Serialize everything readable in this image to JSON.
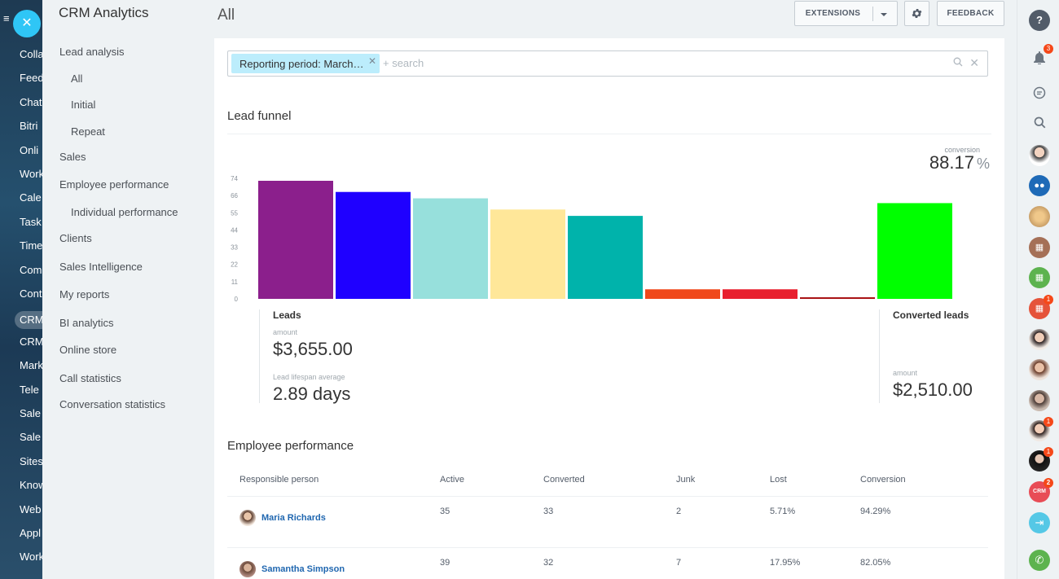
{
  "left_nav": {
    "items": [
      "Colla",
      "Feed",
      "Chat",
      "Bitri",
      "Onli",
      "Work",
      "Cale",
      "Task",
      "Time",
      "Com",
      "Cont",
      "CRM",
      "CRM",
      "Mark",
      "Tele",
      "Sale",
      "Sale",
      "Sites",
      "Know",
      "Web",
      "Appl",
      "Work"
    ],
    "active_index": 11
  },
  "side_menu": {
    "title": "CRM Analytics",
    "items": [
      "Lead analysis",
      "All",
      "Initial",
      "Repeat",
      "Sales",
      "Employee performance",
      "Individual performance",
      "Clients",
      "Sales Intelligence",
      "My reports",
      "BI analytics",
      "Online store",
      "Call statistics",
      "Conversation statistics"
    ]
  },
  "header": {
    "title": "All",
    "extensions_label": "EXTENSIONS",
    "feedback_label": "FEEDBACK"
  },
  "filter": {
    "chip_label": "Reporting period: March…",
    "search_placeholder": "+ search"
  },
  "lead_funnel": {
    "title": "Lead funnel",
    "conversion_label": "conversion",
    "conversion_value": "88.17",
    "conversion_unit": "%",
    "left_block": {
      "title": "Leads",
      "amount_label": "amount",
      "amount_value": "$3,655.00",
      "lifespan_label": "Lead lifespan average",
      "lifespan_value": "2.89 days"
    },
    "right_block": {
      "title": "Converted leads",
      "amount_label": "amount",
      "amount_value": "$2,510.00"
    }
  },
  "chart_data": {
    "type": "bar",
    "y_ticks": [
      "74",
      "66",
      "55",
      "44",
      "33",
      "22",
      "11",
      "0"
    ],
    "ylim": [
      0,
      74
    ],
    "values": [
      74,
      67,
      63,
      56,
      52,
      6,
      6,
      1,
      60
    ],
    "colors": [
      "#8b1f8c",
      "#1f00ff",
      "#97e0dc",
      "#ffe799",
      "#00b3ab",
      "#f0491b",
      "#e8202e",
      "#a81012",
      "#00ff00"
    ]
  },
  "employee_performance": {
    "title": "Employee performance",
    "columns": [
      "Responsible person",
      "Active",
      "Converted",
      "Junk",
      "Lost",
      "Conversion"
    ],
    "rows": [
      {
        "name": "Maria Richards",
        "active": "35",
        "converted": "33",
        "junk": "2",
        "lost": "5.71%",
        "conversion": "94.29%"
      },
      {
        "name": "Samantha Simpson",
        "active": "39",
        "converted": "32",
        "junk": "7",
        "lost": "17.95%",
        "conversion": "82.05%"
      }
    ]
  },
  "right_bar": {
    "badges": {
      "notifications": "3",
      "cal_red": "1",
      "user_a": "1",
      "user_b": "1",
      "crm": "2"
    }
  }
}
